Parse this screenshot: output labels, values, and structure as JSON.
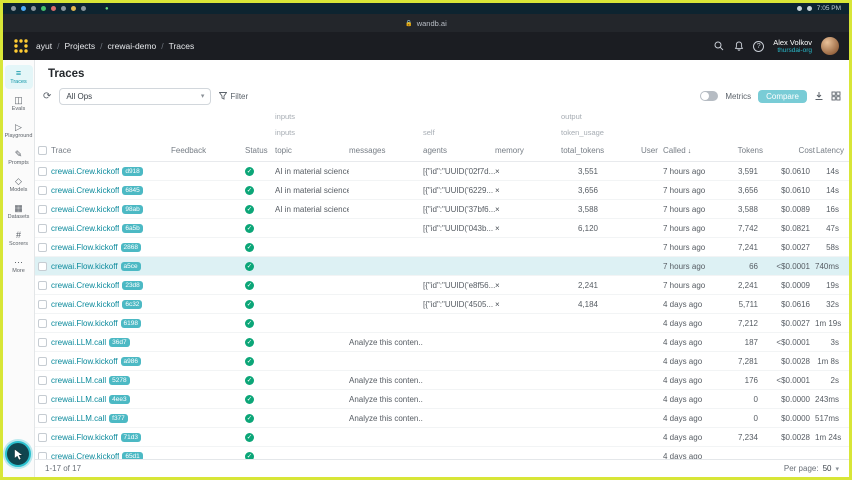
{
  "frame": {
    "url": "wandb.ai",
    "clock": "7:05 PM"
  },
  "theme": {
    "accent": "#13a9ba",
    "success": "#0ca678",
    "row_highlight": "#ddf1f4",
    "logo_yellow": "#ffcc33",
    "border": "#d8e637"
  },
  "navbar": {
    "breadcrumb": [
      "ayut",
      "Projects",
      "crewai-demo",
      "Traces"
    ],
    "user_name": "Alex Volkov",
    "user_org": "thursdai-org",
    "icons": [
      "search-icon",
      "bell-icon",
      "help-icon"
    ]
  },
  "sidebar": {
    "items": [
      {
        "label": "Traces",
        "icon": "traces-icon",
        "glyph": "≡",
        "active": true
      },
      {
        "label": "Evals",
        "icon": "evals-icon",
        "glyph": "◫",
        "active": false
      },
      {
        "label": "Playground",
        "icon": "playground-icon",
        "glyph": "▷",
        "active": false
      },
      {
        "label": "Prompts",
        "icon": "prompts-icon",
        "glyph": "✎",
        "active": false
      },
      {
        "label": "Models",
        "icon": "models-icon",
        "glyph": "◇",
        "active": false
      },
      {
        "label": "Datasets",
        "icon": "datasets-icon",
        "glyph": "▦",
        "active": false
      },
      {
        "label": "Scorers",
        "icon": "scorers-icon",
        "glyph": "#",
        "active": false
      },
      {
        "label": "More",
        "icon": "more-icon",
        "glyph": "⋯",
        "active": false
      }
    ]
  },
  "page": {
    "title": "Traces"
  },
  "toolbar": {
    "ops_value": "All Ops",
    "filter_label": "Filter",
    "metrics_label": "Metrics",
    "compare_label": "Compare"
  },
  "table": {
    "group1": {
      "inputs": "inputs",
      "output": "output"
    },
    "group2": {
      "inputs": "inputs",
      "self": "self",
      "token_usage": "token_usage"
    },
    "columns": {
      "trace": "Trace",
      "feedback": "Feedback",
      "status": "Status",
      "topic": "topic",
      "messages": "messages",
      "agents": "agents",
      "memory": "memory",
      "total_tokens": "total_tokens",
      "user": "User",
      "called": "Called",
      "tokens": "Tokens",
      "cost": "Cost",
      "latency": "Latency"
    },
    "sort_column": "Called",
    "rows": [
      {
        "name": "crewai.Crew.kickoff",
        "id": "d918",
        "topic": "AI in material science",
        "messages": "",
        "agents": "[{\"id\":\"UUID('02f7d...",
        "memory": true,
        "total_tokens": "3,551",
        "called": "7 hours ago",
        "tokens": "3,591",
        "cost": "$0.0610",
        "latency": "14s",
        "highlighted": false
      },
      {
        "name": "crewai.Crew.kickoff",
        "id": "6845",
        "topic": "AI in material science",
        "messages": "",
        "agents": "[{\"id\":\"UUID('6229...",
        "memory": true,
        "total_tokens": "3,656",
        "called": "7 hours ago",
        "tokens": "3,656",
        "cost": "$0.0610",
        "latency": "14s",
        "highlighted": false
      },
      {
        "name": "crewai.Crew.kickoff",
        "id": "98ab",
        "topic": "AI in material science",
        "messages": "",
        "agents": "[{\"id\":\"UUID('37bf6...",
        "memory": true,
        "total_tokens": "3,588",
        "called": "7 hours ago",
        "tokens": "3,588",
        "cost": "$0.0089",
        "latency": "16s",
        "highlighted": false
      },
      {
        "name": "crewai.Crew.kickoff",
        "id": "6a5b",
        "topic": "",
        "messages": "",
        "agents": "[{\"id\":\"UUID('043b...",
        "memory": true,
        "total_tokens": "6,120",
        "called": "7 hours ago",
        "tokens": "7,742",
        "cost": "$0.0821",
        "latency": "47s",
        "highlighted": false
      },
      {
        "name": "crewai.Flow.kickoff",
        "id": "2868",
        "topic": "",
        "messages": "",
        "agents": "",
        "memory": false,
        "total_tokens": "",
        "called": "7 hours ago",
        "tokens": "7,241",
        "cost": "$0.0027",
        "latency": "58s",
        "highlighted": false
      },
      {
        "name": "crewai.Flow.kickoff",
        "id": "a5ce",
        "topic": "",
        "messages": "",
        "agents": "",
        "memory": false,
        "total_tokens": "",
        "called": "7 hours ago",
        "tokens": "66",
        "cost": "<$0.0001",
        "latency": "740ms",
        "highlighted": true
      },
      {
        "name": "crewai.Crew.kickoff",
        "id": "23d8",
        "topic": "",
        "messages": "",
        "agents": "[{\"id\":\"UUID('e8f56...",
        "memory": true,
        "total_tokens": "2,241",
        "called": "7 hours ago",
        "tokens": "2,241",
        "cost": "$0.0009",
        "latency": "19s",
        "highlighted": false
      },
      {
        "name": "crewai.Crew.kickoff",
        "id": "6c32",
        "topic": "",
        "messages": "",
        "agents": "[{\"id\":\"UUID('4505...",
        "memory": true,
        "total_tokens": "4,184",
        "called": "4 days ago",
        "tokens": "5,711",
        "cost": "$0.0616",
        "latency": "32s",
        "highlighted": false
      },
      {
        "name": "crewai.Flow.kickoff",
        "id": "6198",
        "topic": "",
        "messages": "",
        "agents": "",
        "memory": false,
        "total_tokens": "",
        "called": "4 days ago",
        "tokens": "7,212",
        "cost": "$0.0027",
        "latency": "1m 19s",
        "highlighted": false
      },
      {
        "name": "crewai.LLM.call",
        "id": "36d7",
        "topic": "",
        "messages": "Analyze this conten...",
        "agents": "",
        "memory": false,
        "total_tokens": "",
        "called": "4 days ago",
        "tokens": "187",
        "cost": "<$0.0001",
        "latency": "3s",
        "highlighted": false
      },
      {
        "name": "crewai.Flow.kickoff",
        "id": "a986",
        "topic": "",
        "messages": "",
        "agents": "",
        "memory": false,
        "total_tokens": "",
        "called": "4 days ago",
        "tokens": "7,281",
        "cost": "$0.0028",
        "latency": "1m 8s",
        "highlighted": false
      },
      {
        "name": "crewai.LLM.call",
        "id": "5278",
        "topic": "",
        "messages": "Analyze this conten...",
        "agents": "",
        "memory": false,
        "total_tokens": "",
        "called": "4 days ago",
        "tokens": "176",
        "cost": "<$0.0001",
        "latency": "2s",
        "highlighted": false
      },
      {
        "name": "crewai.LLM.call",
        "id": "4ee3",
        "topic": "",
        "messages": "Analyze this conten...",
        "agents": "",
        "memory": false,
        "total_tokens": "",
        "called": "4 days ago",
        "tokens": "0",
        "cost": "$0.0000",
        "latency": "243ms",
        "highlighted": false
      },
      {
        "name": "crewai.LLM.call",
        "id": "f377",
        "topic": "",
        "messages": "Analyze this conten...",
        "agents": "",
        "memory": false,
        "total_tokens": "",
        "called": "4 days ago",
        "tokens": "0",
        "cost": "$0.0000",
        "latency": "517ms",
        "highlighted": false
      },
      {
        "name": "crewai.Flow.kickoff",
        "id": "71d3",
        "topic": "",
        "messages": "",
        "agents": "",
        "memory": false,
        "total_tokens": "",
        "called": "4 days ago",
        "tokens": "7,234",
        "cost": "$0.0028",
        "latency": "1m 24s",
        "highlighted": false
      },
      {
        "name": "crewai.Crew.kickoff",
        "id": "65d1",
        "topic": "",
        "messages": "",
        "agents": "",
        "memory": false,
        "total_tokens": "",
        "called": "4 days ago",
        "tokens": "",
        "cost": "",
        "latency": "",
        "highlighted": false
      }
    ]
  },
  "footer": {
    "range": "1-17 of 17",
    "per_page_label": "Per page:",
    "per_page_value": "50"
  }
}
